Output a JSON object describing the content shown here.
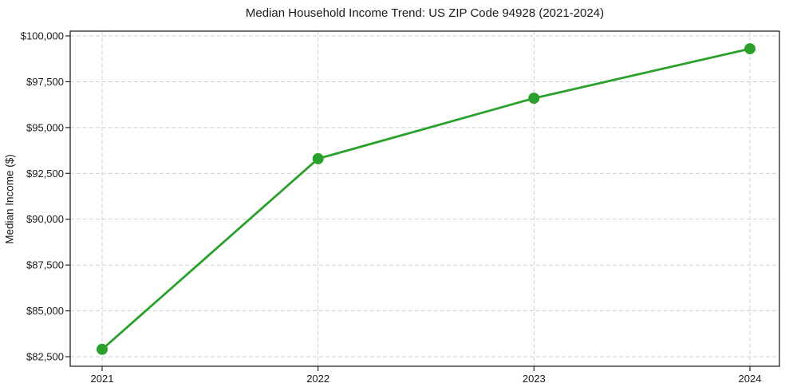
{
  "chart_data": {
    "type": "line",
    "title": "Median Household Income Trend: US ZIP Code 94928 (2021-2024)",
    "xlabel": "",
    "ylabel": "Median Income ($)",
    "categories": [
      "2021",
      "2022",
      "2023",
      "2024"
    ],
    "series": [
      {
        "name": "Median Household Income",
        "color": "#2ca02c",
        "marker": "circle",
        "values": [
          82900,
          93300,
          96600,
          99300
        ]
      }
    ],
    "y_ticks": [
      {
        "value": 82500,
        "label": "$82,500"
      },
      {
        "value": 85000,
        "label": "$85,000"
      },
      {
        "value": 87500,
        "label": "$87,500"
      },
      {
        "value": 90000,
        "label": "$90,000"
      },
      {
        "value": 92500,
        "label": "$92,500"
      },
      {
        "value": 95000,
        "label": "$95,000"
      },
      {
        "value": 97500,
        "label": "$97,500"
      },
      {
        "value": 100000,
        "label": "$100,000"
      }
    ],
    "ylim": [
      82000,
      100300
    ],
    "grid": true,
    "grid_line_style": "dashed",
    "grid_color": "#cccccc",
    "axis_color": "#262626",
    "text_color": "#1a1a1a",
    "background": "#ffffff",
    "legend": "none"
  }
}
